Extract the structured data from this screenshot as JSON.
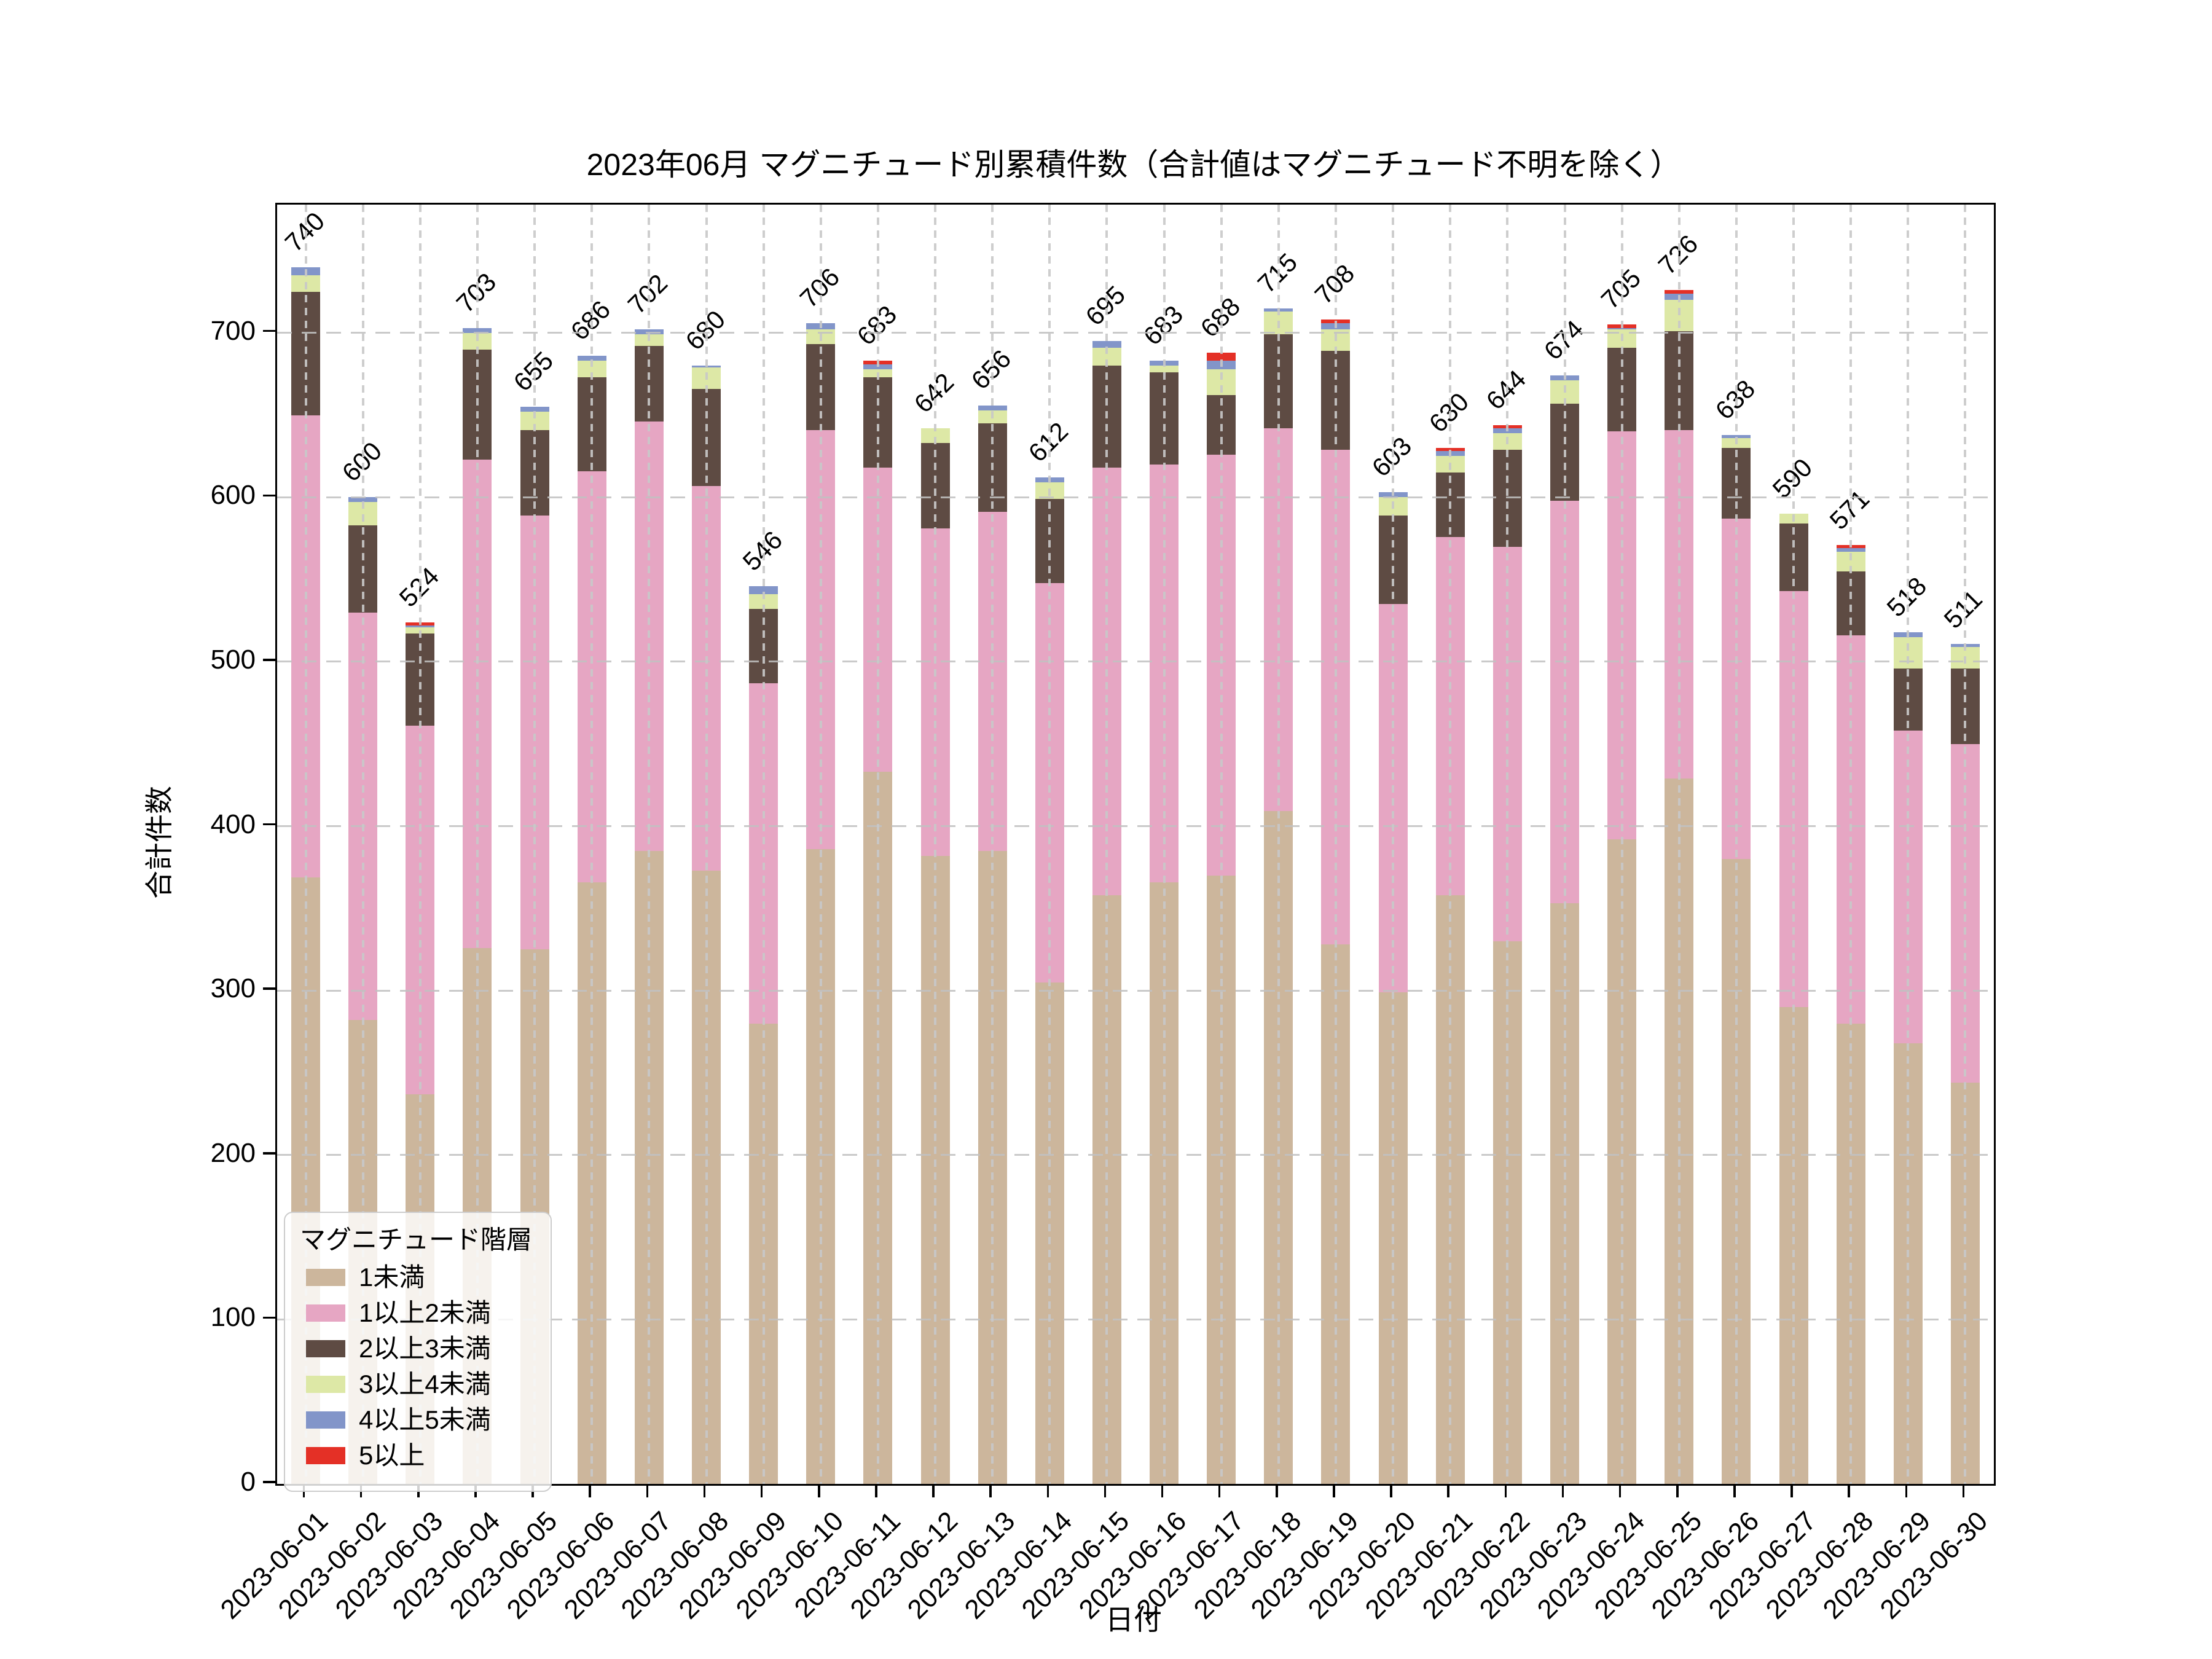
{
  "figure": {
    "title": "2023年06月 マグニチュード別累積件数（合計値はマグニチュード不明を除く）",
    "xlabel": "日付",
    "ylabel": "合計件数"
  },
  "legend": {
    "title": "マグニチュード階層"
  },
  "chart_data": {
    "type": "bar",
    "stacked": true,
    "title": "2023年06月 マグニチュード別累積件数（合計値はマグニチュード不明を除く）",
    "xlabel": "日付",
    "ylabel": "合計件数",
    "ylim": [
      0,
      778
    ],
    "yticks": [
      0,
      100,
      200,
      300,
      400,
      500,
      600,
      700
    ],
    "grid": true,
    "grid_style": "dashed",
    "legend_position": "lower left",
    "bar_label_rotation_deg": 45,
    "xtick_rotation_deg": 45,
    "categories": [
      "2023-06-01",
      "2023-06-02",
      "2023-06-03",
      "2023-06-04",
      "2023-06-05",
      "2023-06-06",
      "2023-06-07",
      "2023-06-08",
      "2023-06-09",
      "2023-06-10",
      "2023-06-11",
      "2023-06-12",
      "2023-06-13",
      "2023-06-14",
      "2023-06-15",
      "2023-06-16",
      "2023-06-17",
      "2023-06-18",
      "2023-06-19",
      "2023-06-20",
      "2023-06-21",
      "2023-06-22",
      "2023-06-23",
      "2023-06-24",
      "2023-06-25",
      "2023-06-26",
      "2023-06-27",
      "2023-06-28",
      "2023-06-29",
      "2023-06-30"
    ],
    "series": [
      {
        "name": "1未満",
        "color": "#ccb69c",
        "values": [
          369,
          282,
          237,
          326,
          325,
          366,
          385,
          373,
          280,
          386,
          433,
          382,
          385,
          305,
          358,
          366,
          370,
          409,
          328,
          299,
          358,
          330,
          353,
          392,
          429,
          380,
          290,
          280,
          268,
          244
        ]
      },
      {
        "name": "1以上2未満",
        "color": "#e6a6c3",
        "values": [
          281,
          248,
          224,
          297,
          264,
          250,
          261,
          234,
          207,
          255,
          185,
          199,
          206,
          243,
          260,
          254,
          256,
          233,
          301,
          236,
          218,
          240,
          245,
          248,
          212,
          207,
          253,
          236,
          190,
          206
        ]
      },
      {
        "name": "2以上3未満",
        "color": "#5e4b43",
        "values": [
          75,
          53,
          56,
          67,
          52,
          57,
          46,
          59,
          45,
          52,
          55,
          52,
          54,
          51,
          62,
          56,
          36,
          57,
          60,
          54,
          39,
          59,
          59,
          51,
          60,
          43,
          41,
          39,
          38,
          46
        ]
      },
      {
        "name": "3以上4未満",
        "color": "#dde8a6",
        "values": [
          10,
          14,
          4,
          10,
          11,
          10,
          7,
          13,
          9,
          9,
          5,
          9,
          8,
          10,
          11,
          4,
          16,
          14,
          13,
          11,
          10,
          10,
          14,
          11,
          19,
          6,
          6,
          12,
          19,
          13
        ]
      },
      {
        "name": "4以上5未満",
        "color": "#8295c9",
        "values": [
          5,
          3,
          1,
          3,
          3,
          3,
          3,
          1,
          5,
          4,
          3,
          0,
          3,
          3,
          4,
          3,
          5,
          2,
          4,
          3,
          3,
          3,
          3,
          1,
          4,
          2,
          0,
          2,
          3,
          2
        ]
      },
      {
        "name": "5以上",
        "color": "#e43026",
        "values": [
          0,
          0,
          2,
          0,
          0,
          0,
          0,
          0,
          0,
          0,
          2,
          0,
          0,
          0,
          0,
          0,
          5,
          0,
          2,
          0,
          2,
          2,
          0,
          2,
          2,
          0,
          0,
          2,
          0,
          0
        ]
      }
    ],
    "totals": [
      740,
      600,
      524,
      703,
      655,
      686,
      702,
      680,
      546,
      706,
      683,
      642,
      656,
      612,
      695,
      683,
      688,
      715,
      708,
      603,
      630,
      644,
      674,
      705,
      726,
      638,
      590,
      571,
      518,
      511
    ],
    "colors": {
      "spine": "#000000",
      "grid": "#c1c1c1",
      "text": "#000000",
      "legend_border": "#cccccc"
    }
  }
}
